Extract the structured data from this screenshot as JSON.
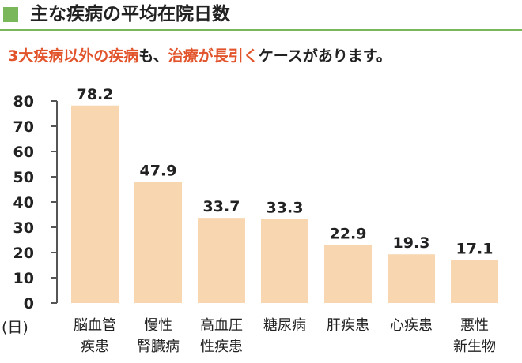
{
  "header": {
    "title": "主な疾病の平均在院日数"
  },
  "subtitle": {
    "highlight1": "3大疾病以外の疾病",
    "normal1": "も、",
    "highlight2": "治療が長引く",
    "normal2": "ケースがあります。"
  },
  "colors": {
    "header_square": "#7ab65a",
    "header_rule": "#7ab65a",
    "accent_text": "#e2542c",
    "bar": "#f7d6b0",
    "axis": "#555555",
    "text": "#222222"
  },
  "chart_data": {
    "type": "bar",
    "title": "",
    "xlabel": "",
    "ylabel": "",
    "yunit": "(日)",
    "ylim": [
      0,
      80
    ],
    "yticks": [
      0,
      10,
      20,
      30,
      40,
      50,
      60,
      70,
      80
    ],
    "grid": false,
    "legend": "none",
    "categories": [
      [
        "脳血管",
        "疾患"
      ],
      [
        "慢性",
        "腎臓病"
      ],
      [
        "高血圧",
        "性疾患"
      ],
      [
        "糖尿病"
      ],
      [
        "肝疾患"
      ],
      [
        "心疾患"
      ],
      [
        "悪性",
        "新生物"
      ]
    ],
    "values": [
      78.2,
      47.9,
      33.7,
      33.3,
      22.9,
      19.3,
      17.1
    ],
    "value_labels": [
      "78.2",
      "47.9",
      "33.7",
      "33.3",
      "22.9",
      "19.3",
      "17.1"
    ]
  }
}
